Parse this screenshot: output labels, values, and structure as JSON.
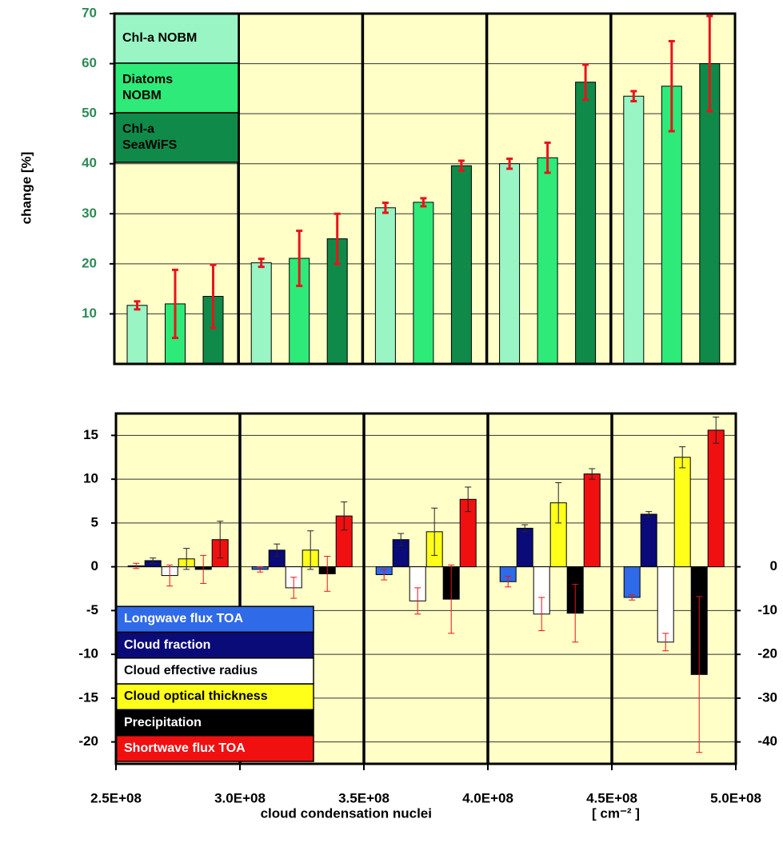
{
  "chart_data": [
    {
      "type": "bar",
      "ylabel": "change [%]",
      "categories": [
        null,
        null,
        null,
        null,
        null
      ],
      "ylim": [
        0,
        70
      ],
      "yticks": [
        10,
        20,
        30,
        40,
        50,
        60,
        70
      ],
      "legend": "top-left",
      "series": [
        {
          "name": "Chl-a NOBM",
          "color": "#99f5c4",
          "error_color": "#e8141c",
          "values": [
            11.7,
            20.2,
            31.2,
            40.0,
            53.5
          ],
          "errors": [
            0.8,
            0.8,
            1.0,
            1.0,
            1.0
          ]
        },
        {
          "name": "Diatoms NOBM",
          "color": "#2eea78",
          "error_color": "#e8141c",
          "values": [
            12.0,
            21.1,
            32.3,
            41.2,
            55.5
          ],
          "errors": [
            6.8,
            5.5,
            0.8,
            3.0,
            9.0
          ]
        },
        {
          "name": "Chl-a SeaWiFS",
          "color": "#0f8a48",
          "error_color": "#e8141c",
          "values": [
            13.5,
            25.0,
            39.6,
            56.3,
            60.0
          ],
          "errors": [
            6.3,
            5.0,
            1.0,
            3.5,
            9.5
          ]
        }
      ]
    },
    {
      "type": "bar",
      "xlabel": "cloud condensation nuclei",
      "xlabel_unit": "[ cm⁻² ]",
      "categories": [
        null,
        null,
        null,
        null,
        null
      ],
      "xlim": [
        250000000,
        500000000
      ],
      "xticks": [
        {
          "value": 250000000,
          "label": "2.5E+08"
        },
        {
          "value": 300000000,
          "label": "3.0E+08"
        },
        {
          "value": 350000000,
          "label": "3.5E+08"
        },
        {
          "value": 400000000,
          "label": "4.0E+08"
        },
        {
          "value": 450000000,
          "label": "4.5E+08"
        },
        {
          "value": 500000000,
          "label": "5.0E+08"
        }
      ],
      "ylim": [
        -22.5,
        17.5
      ],
      "yticks": [
        15,
        10,
        5,
        0,
        -5,
        -10,
        -15,
        -20
      ],
      "y2lim": [
        -45,
        35
      ],
      "y2ticks": [
        0,
        -10,
        -20,
        -30,
        -40
      ],
      "legend": "bottom-left",
      "series": [
        {
          "name": "Longwave flux TOA",
          "color": "#2f6ae8",
          "error_color": "#e8141c",
          "values": [
            0.1,
            -0.3,
            -0.9,
            -1.7,
            -3.5
          ],
          "errors": [
            0.3,
            0.3,
            0.6,
            0.6,
            0.3
          ]
        },
        {
          "name": "Cloud fraction",
          "color": "#0a0a78",
          "error_color": "#222222",
          "values": [
            0.7,
            1.9,
            3.1,
            4.4,
            6.0
          ],
          "errors": [
            0.3,
            0.7,
            0.7,
            0.4,
            0.3
          ]
        },
        {
          "name": "Cloud effective radius",
          "color": "#ffffff",
          "error_color": "#e8141c",
          "values": [
            -1.0,
            -2.4,
            -3.9,
            -5.4,
            -8.6
          ],
          "errors": [
            1.2,
            1.2,
            1.5,
            1.9,
            1.0
          ]
        },
        {
          "name": "Cloud optical thickness",
          "color": "#ffff1a",
          "error_color": "#222222",
          "values": [
            0.9,
            1.9,
            4.0,
            7.3,
            12.5
          ],
          "errors": [
            1.2,
            2.2,
            2.7,
            2.3,
            1.2
          ]
        },
        {
          "name": "Precipitation",
          "color": "#000000",
          "error_color": "#e8141c",
          "axis": "y2",
          "values": [
            -0.6,
            -1.6,
            -7.4,
            -10.6,
            -24.6
          ],
          "errors": [
            3.2,
            4.0,
            7.8,
            6.6,
            17.8
          ]
        },
        {
          "name": "Shortwave flux TOA",
          "color": "#f01010",
          "error_color": "#222222",
          "values": [
            3.1,
            5.8,
            7.7,
            10.6,
            15.6
          ],
          "errors": [
            2.1,
            1.6,
            1.4,
            0.6,
            1.5
          ]
        }
      ]
    }
  ]
}
